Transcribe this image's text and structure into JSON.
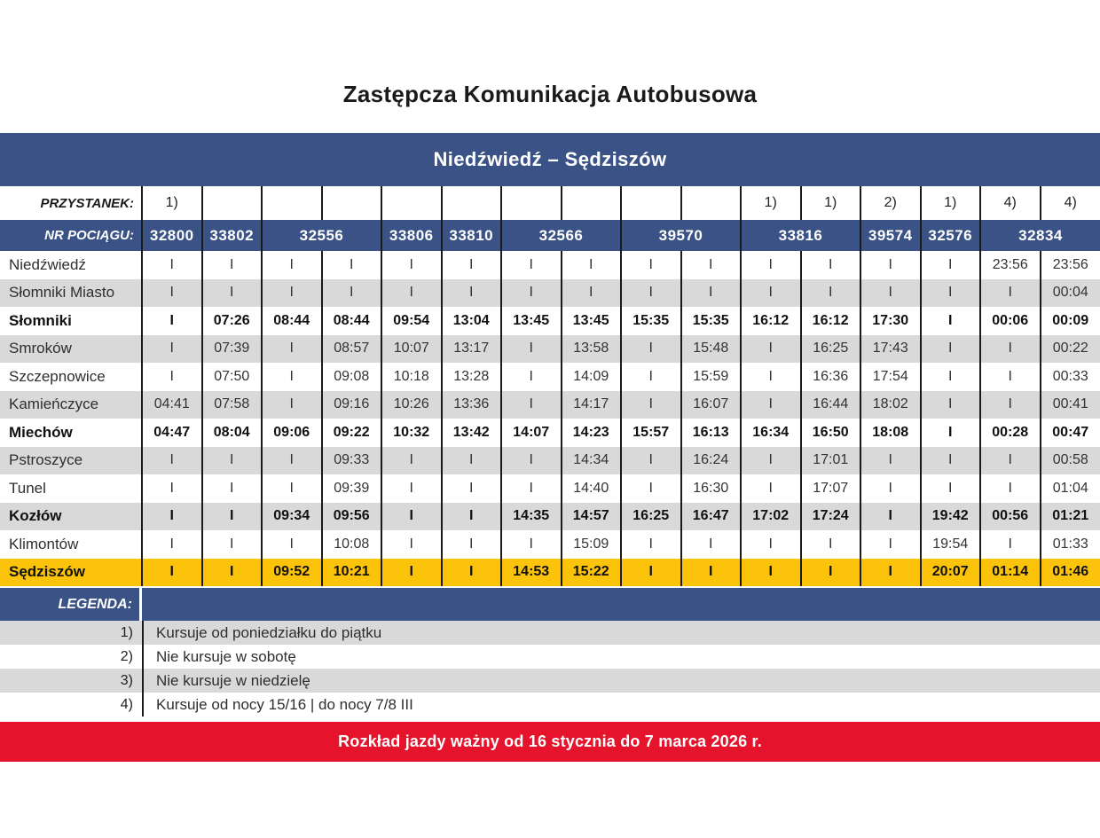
{
  "title": "Zastępcza Komunikacja Autobusowa",
  "route_header": "Niedźwiedź – Sędziszów",
  "table": {
    "przystanek_label": "PRZYSTANEK:",
    "nr_pociagu_label": "NR POCIĄGU:",
    "markers": [
      "1)",
      "",
      "",
      "",
      "",
      "",
      "",
      "",
      "",
      "",
      "1)",
      "1)",
      "2)",
      "1)",
      "4)",
      "4)"
    ],
    "trains": [
      {
        "number": "32800",
        "colspan": 1
      },
      {
        "number": "33802",
        "colspan": 1
      },
      {
        "number": "32556",
        "colspan": 2
      },
      {
        "number": "33806",
        "colspan": 1
      },
      {
        "number": "33810",
        "colspan": 1
      },
      {
        "number": "32566",
        "colspan": 2
      },
      {
        "number": "39570",
        "colspan": 2
      },
      {
        "number": "33816",
        "colspan": 2
      },
      {
        "number": "39574",
        "colspan": 1
      },
      {
        "number": "32576",
        "colspan": 1
      },
      {
        "number": "32834",
        "colspan": 2
      }
    ],
    "rows": [
      {
        "station": "Niedźwiedź",
        "bold": false,
        "highlight": false,
        "times": [
          "I",
          "I",
          "I",
          "I",
          "I",
          "I",
          "I",
          "I",
          "I",
          "I",
          "I",
          "I",
          "I",
          "I",
          "23:56",
          "23:56"
        ]
      },
      {
        "station": "Słomniki Miasto",
        "bold": false,
        "highlight": false,
        "times": [
          "I",
          "I",
          "I",
          "I",
          "I",
          "I",
          "I",
          "I",
          "I",
          "I",
          "I",
          "I",
          "I",
          "I",
          "I",
          "00:04"
        ]
      },
      {
        "station": "Słomniki",
        "bold": true,
        "highlight": false,
        "times": [
          "I",
          "07:26",
          "08:44",
          "08:44",
          "09:54",
          "13:04",
          "13:45",
          "13:45",
          "15:35",
          "15:35",
          "16:12",
          "16:12",
          "17:30",
          "I",
          "00:06",
          "00:09"
        ]
      },
      {
        "station": "Smroków",
        "bold": false,
        "highlight": false,
        "times": [
          "I",
          "07:39",
          "I",
          "08:57",
          "10:07",
          "13:17",
          "I",
          "13:58",
          "I",
          "15:48",
          "I",
          "16:25",
          "17:43",
          "I",
          "I",
          "00:22"
        ]
      },
      {
        "station": "Szczepnowice",
        "bold": false,
        "highlight": false,
        "times": [
          "I",
          "07:50",
          "I",
          "09:08",
          "10:18",
          "13:28",
          "I",
          "14:09",
          "I",
          "15:59",
          "I",
          "16:36",
          "17:54",
          "I",
          "I",
          "00:33"
        ]
      },
      {
        "station": "Kamieńczyce",
        "bold": false,
        "highlight": false,
        "times": [
          "04:41",
          "07:58",
          "I",
          "09:16",
          "10:26",
          "13:36",
          "I",
          "14:17",
          "I",
          "16:07",
          "I",
          "16:44",
          "18:02",
          "I",
          "I",
          "00:41"
        ]
      },
      {
        "station": "Miechów",
        "bold": true,
        "highlight": false,
        "times": [
          "04:47",
          "08:04",
          "09:06",
          "09:22",
          "10:32",
          "13:42",
          "14:07",
          "14:23",
          "15:57",
          "16:13",
          "16:34",
          "16:50",
          "18:08",
          "I",
          "00:28",
          "00:47"
        ]
      },
      {
        "station": "Pstroszyce",
        "bold": false,
        "highlight": false,
        "times": [
          "I",
          "I",
          "I",
          "09:33",
          "I",
          "I",
          "I",
          "14:34",
          "I",
          "16:24",
          "I",
          "17:01",
          "I",
          "I",
          "I",
          "00:58"
        ]
      },
      {
        "station": "Tunel",
        "bold": false,
        "highlight": false,
        "times": [
          "I",
          "I",
          "I",
          "09:39",
          "I",
          "I",
          "I",
          "14:40",
          "I",
          "16:30",
          "I",
          "17:07",
          "I",
          "I",
          "I",
          "01:04"
        ]
      },
      {
        "station": "Kozłów",
        "bold": true,
        "highlight": false,
        "times": [
          "I",
          "I",
          "09:34",
          "09:56",
          "I",
          "I",
          "14:35",
          "14:57",
          "16:25",
          "16:47",
          "17:02",
          "17:24",
          "I",
          "19:42",
          "00:56",
          "01:21"
        ]
      },
      {
        "station": "Klimontów",
        "bold": false,
        "highlight": false,
        "times": [
          "I",
          "I",
          "I",
          "10:08",
          "I",
          "I",
          "I",
          "15:09",
          "I",
          "I",
          "I",
          "I",
          "I",
          "19:54",
          "I",
          "01:33"
        ]
      },
      {
        "station": "Sędziszów",
        "bold": true,
        "highlight": true,
        "times": [
          "I",
          "I",
          "09:52",
          "10:21",
          "I",
          "I",
          "14:53",
          "15:22",
          "I",
          "I",
          "I",
          "I",
          "I",
          "20:07",
          "01:14",
          "01:46"
        ]
      }
    ]
  },
  "legend": {
    "label": "LEGENDA:",
    "items": [
      {
        "marker": "1)",
        "text": "Kursuje od poniedziałku do piątku"
      },
      {
        "marker": "2)",
        "text": "Nie kursuje w sobotę"
      },
      {
        "marker": "3)",
        "text": "Nie kursuje w niedzielę"
      },
      {
        "marker": "4)",
        "text": "Kursuje od nocy 15/16  |  do nocy 7/8 III"
      }
    ]
  },
  "footer": "Rozkład jazdy ważny od 16 stycznia do 7 marca 2026 r.",
  "colors": {
    "header_blue": "#3a5286",
    "stripe_gray": "#d9d9d9",
    "highlight_yellow": "#fcc30b",
    "banner_red": "#e5132b",
    "border_black": "#1a1a1a"
  }
}
